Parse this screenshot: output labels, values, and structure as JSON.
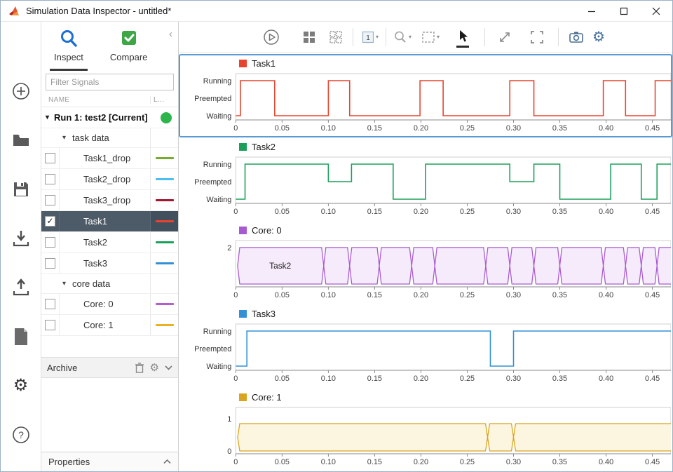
{
  "window": {
    "title": "Simulation Data Inspector - untitled*"
  },
  "left_toolbar": {
    "icons": [
      "add-run-icon",
      "open-folder-icon",
      "save-icon",
      "import-icon",
      "export-icon",
      "report-icon",
      "preferences-gear-icon",
      "help-icon"
    ]
  },
  "sidebar": {
    "tabs": [
      {
        "label": "Inspect",
        "icon": "search-icon",
        "active": true
      },
      {
        "label": "Compare",
        "icon": "compare-check-icon",
        "active": false
      }
    ],
    "filter": {
      "placeholder": "Filter Signals"
    },
    "columns": {
      "name": "NAME",
      "line": "L..."
    },
    "run": {
      "label": "Run 1: test2 [Current]",
      "status_color": "#2db54b"
    },
    "groups": [
      {
        "label": "task data",
        "items": [
          {
            "label": "Task1_drop",
            "checked": false,
            "selected": false,
            "line_color": "#77AC30"
          },
          {
            "label": "Task2_drop",
            "checked": false,
            "selected": false,
            "line_color": "#4DBEEE"
          },
          {
            "label": "Task3_drop",
            "checked": false,
            "selected": false,
            "line_color": "#A2142F"
          },
          {
            "label": "Task1",
            "checked": true,
            "selected": true,
            "line_color": "#E8432E"
          },
          {
            "label": "Task2",
            "checked": false,
            "selected": false,
            "line_color": "#1BA05C"
          },
          {
            "label": "Task3",
            "checked": false,
            "selected": false,
            "line_color": "#3390D5"
          }
        ]
      },
      {
        "label": "core data",
        "items": [
          {
            "label": "Core: 0",
            "checked": false,
            "selected": false,
            "line_color": "#B65CCF"
          },
          {
            "label": "Core: 1",
            "checked": false,
            "selected": false,
            "line_color": "#EDB120"
          }
        ]
      }
    ],
    "archive": {
      "label": "Archive",
      "icons": [
        "trash-icon",
        "gear-icon",
        "chevron-down-icon"
      ]
    },
    "properties": {
      "label": "Properties",
      "icon": "chevron-up-icon"
    }
  },
  "toolbar": {
    "page_box": "1",
    "icons": [
      "play-icon",
      "layout-grid-icon",
      "subplot-layout-icon",
      "page-layout-icon",
      "zoom-icon",
      "zoom-region-icon",
      "cursor-icon",
      "expand-icon",
      "fit-screen-icon",
      "snapshot-camera-icon",
      "settings-gear-icon"
    ],
    "active_tool": "cursor"
  },
  "x_axis": {
    "xlim": [
      0,
      0.47
    ],
    "ticks": [
      {
        "v": 0,
        "label": "0"
      },
      {
        "v": 0.05,
        "label": "0.05"
      },
      {
        "v": 0.1,
        "label": "0.10"
      },
      {
        "v": 0.15,
        "label": "0.15"
      },
      {
        "v": 0.2,
        "label": "0.20"
      },
      {
        "v": 0.25,
        "label": "0.25"
      },
      {
        "v": 0.3,
        "label": "0.30"
      },
      {
        "v": 0.35,
        "label": "0.35"
      },
      {
        "v": 0.4,
        "label": "0.40"
      },
      {
        "v": 0.45,
        "label": "0.45"
      }
    ]
  },
  "chart_data": [
    {
      "type": "state",
      "title": "Task1",
      "color": "#E8432E",
      "selected": true,
      "states": [
        "Running",
        "Preempted",
        "Waiting"
      ],
      "points": [
        [
          0,
          "Waiting"
        ],
        [
          0.005,
          "Running"
        ],
        [
          0.042,
          "Waiting"
        ],
        [
          0.1,
          "Running"
        ],
        [
          0.123,
          "Waiting"
        ],
        [
          0.199,
          "Running"
        ],
        [
          0.224,
          "Waiting"
        ],
        [
          0.296,
          "Running"
        ],
        [
          0.322,
          "Waiting"
        ],
        [
          0.397,
          "Running"
        ],
        [
          0.421,
          "Waiting"
        ],
        [
          0.453,
          "Running"
        ]
      ]
    },
    {
      "type": "state",
      "title": "Task2",
      "color": "#1BA05C",
      "selected": false,
      "states": [
        "Running",
        "Preempted",
        "Waiting"
      ],
      "points": [
        [
          0,
          "Waiting"
        ],
        [
          0.01,
          "Running"
        ],
        [
          0.1,
          "Preempted"
        ],
        [
          0.125,
          "Running"
        ],
        [
          0.17,
          "Waiting"
        ],
        [
          0.205,
          "Running"
        ],
        [
          0.296,
          "Preempted"
        ],
        [
          0.322,
          "Running"
        ],
        [
          0.35,
          "Waiting"
        ],
        [
          0.405,
          "Running"
        ],
        [
          0.438,
          "Waiting"
        ],
        [
          0.455,
          "Running"
        ]
      ]
    },
    {
      "type": "bus",
      "title": "Core: 0",
      "color": "#A85BD0",
      "fill": "#F6EBFA",
      "selected": false,
      "ylim": [
        0,
        2.15
      ],
      "band_value": 2,
      "yticks": [
        {
          "v": 2,
          "label": "2"
        }
      ],
      "transitions": [
        0.002,
        0.095,
        0.123,
        0.155,
        0.19,
        0.215,
        0.27,
        0.296,
        0.322,
        0.35,
        0.397,
        0.421,
        0.438,
        0.455
      ],
      "segment_label": {
        "text": "Task2",
        "t": 0.048
      }
    },
    {
      "type": "state",
      "title": "Task3",
      "color": "#3390D5",
      "selected": false,
      "states": [
        "Running",
        "Preempted",
        "Waiting"
      ],
      "points": [
        [
          0,
          "Waiting"
        ],
        [
          0.012,
          "Running"
        ],
        [
          0.275,
          "Waiting"
        ],
        [
          0.3,
          "Running"
        ]
      ]
    },
    {
      "type": "bus",
      "title": "Core: 1",
      "color": "#D9A51E",
      "fill": "#FCF5E0",
      "selected": false,
      "ylim": [
        0,
        1.22
      ],
      "band_value": 0.85,
      "yticks": [
        {
          "v": 1,
          "label": "1"
        },
        {
          "v": 0,
          "label": "0"
        }
      ],
      "transitions": [
        0.002,
        0.272,
        0.3
      ],
      "segment_label": null
    }
  ]
}
